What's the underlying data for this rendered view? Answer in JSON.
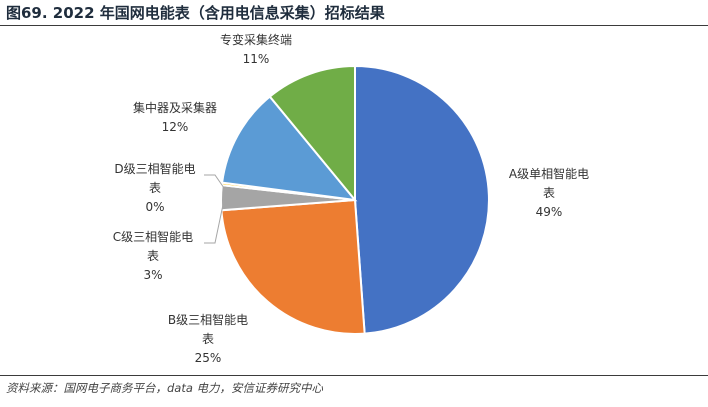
{
  "figure": {
    "title": "图69. 2022 年国网电能表（含用电信息采集）招标结果",
    "source": "资料来源：国网电子商务平台，data 电力，安信证券研究中心"
  },
  "chart_data": {
    "type": "pie",
    "title": "",
    "slices": [
      {
        "label": "A级单相智能电表",
        "value": 49,
        "display": "49%",
        "color": "#4472C4"
      },
      {
        "label": "B级三相智能电表",
        "value": 25,
        "display": "25%",
        "color": "#ED7D31"
      },
      {
        "label": "C级三相智能电表",
        "value": 3,
        "display": "3%",
        "color": "#A5A5A5"
      },
      {
        "label": "D级三相智能电表",
        "value": 0.3,
        "display": "0%",
        "color": "#FFC000"
      },
      {
        "label": "集中器及采集器",
        "value": 12,
        "display": "12%",
        "color": "#5B9BD5"
      },
      {
        "label": "专变采集终端",
        "value": 11,
        "display": "11%",
        "color": "#70AD47"
      }
    ],
    "legend": "none",
    "data_labels": "outside"
  }
}
